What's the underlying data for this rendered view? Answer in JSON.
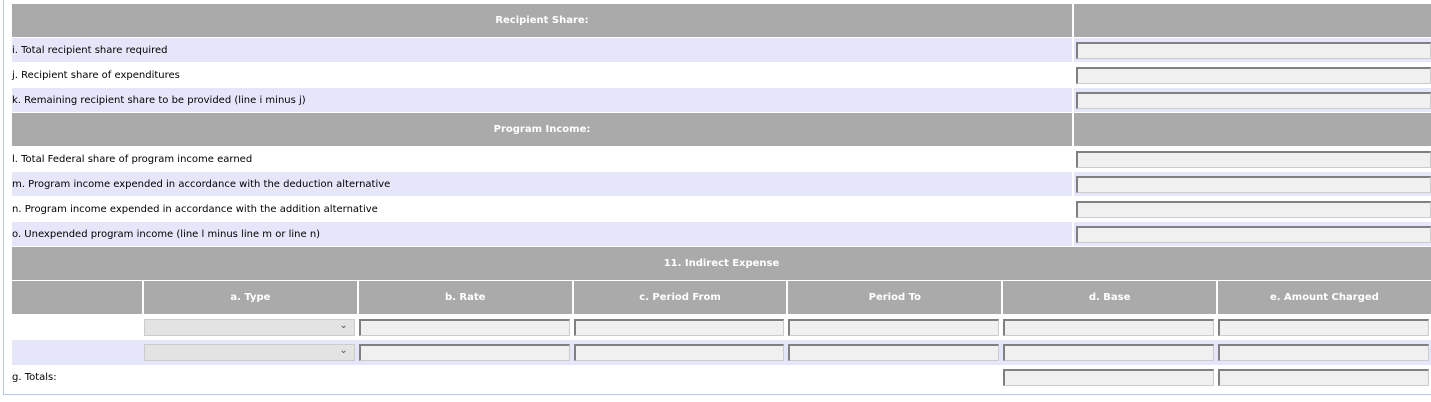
{
  "recipient_share": {
    "header": "Recipient Share:",
    "rows": [
      {
        "label": "i. Total recipient share required",
        "value": ""
      },
      {
        "label": "j. Recipient share of expenditures",
        "value": ""
      },
      {
        "label": "k. Remaining recipient share to be provided (line i minus j)",
        "value": ""
      }
    ]
  },
  "program_income": {
    "header": "Program Income:",
    "rows": [
      {
        "label": "l. Total Federal share of program income earned",
        "value": ""
      },
      {
        "label": "m. Program income expended in accordance with the deduction alternative",
        "value": ""
      },
      {
        "label": "n. Program income expended in accordance with the addition alternative",
        "value": ""
      },
      {
        "label": "o. Unexpended program income (line l minus line m or line n)",
        "value": ""
      }
    ]
  },
  "indirect_expense": {
    "header": "11. Indirect Expense",
    "columns": [
      "",
      "a. Type",
      "b. Rate",
      "c. Period From",
      "Period To",
      "d. Base",
      "e. Amount Charged"
    ],
    "rows": [
      {
        "type": "",
        "rate": "",
        "period_from": "",
        "period_to": "",
        "base": "",
        "amount": ""
      },
      {
        "type": "",
        "rate": "",
        "period_from": "",
        "period_to": "",
        "base": "",
        "amount": ""
      }
    ],
    "totals_label": "g. Totals:",
    "totals": {
      "base": "",
      "amount": ""
    }
  },
  "colors": {
    "header_bg": "#aaaaaa",
    "alt_row": "#e6e6fa",
    "input_bg": "#f0f0f0"
  }
}
